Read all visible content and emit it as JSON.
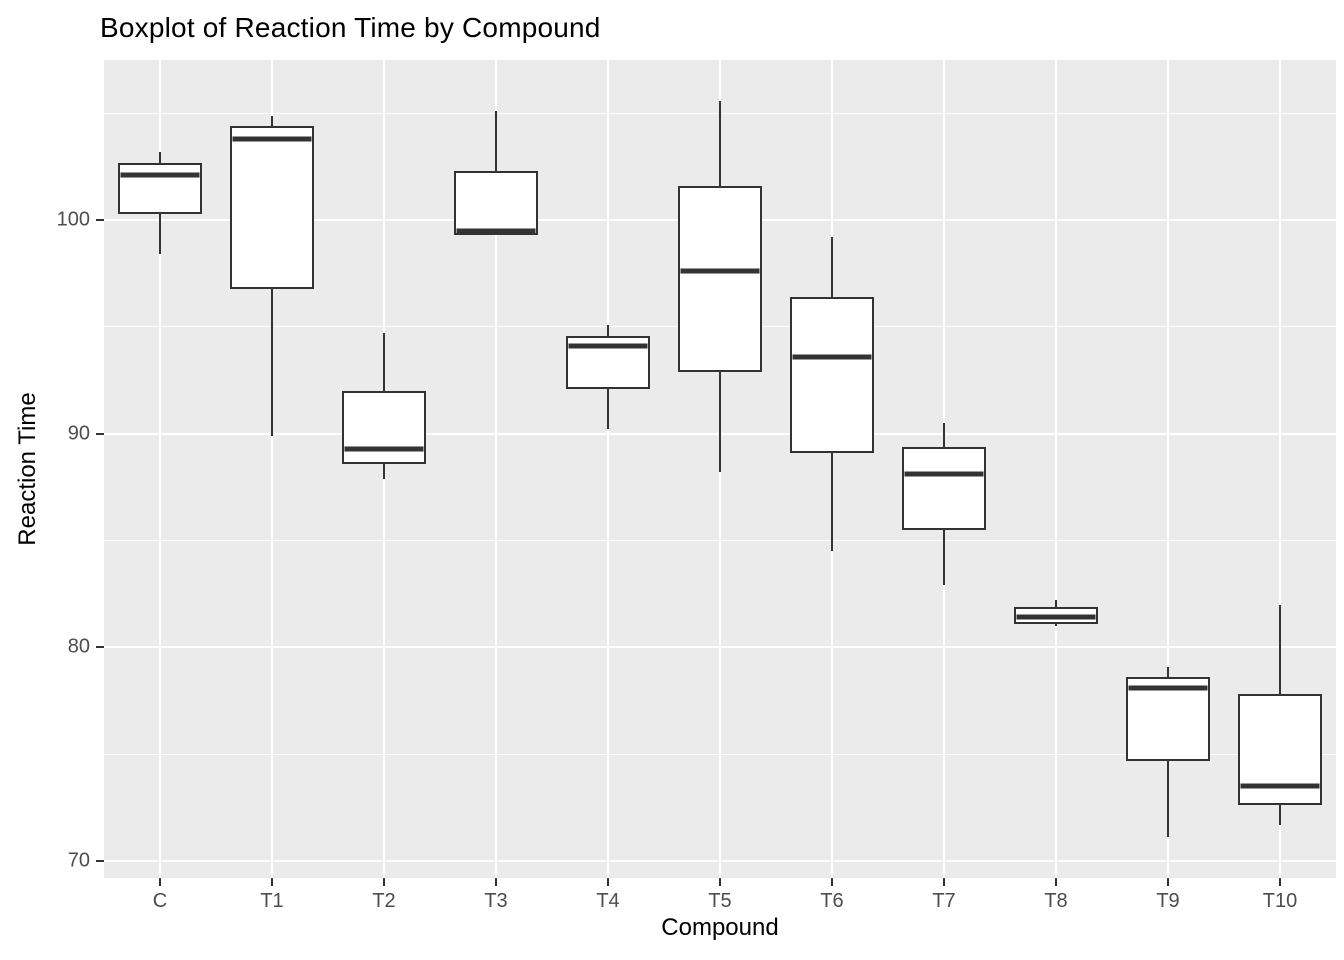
{
  "chart_data": {
    "type": "boxplot",
    "title": "Boxplot of Reaction Time by Compound",
    "xlabel": "Compound",
    "ylabel": "Reaction Time",
    "categories": [
      "C",
      "T1",
      "T2",
      "T3",
      "T4",
      "T5",
      "T6",
      "T7",
      "T8",
      "T9",
      "T10"
    ],
    "boxes": [
      {
        "category": "C",
        "whisker_low": 98.4,
        "q1": 100.3,
        "median": 102.1,
        "q3": 102.7,
        "whisker_high": 103.2
      },
      {
        "category": "T1",
        "whisker_low": 89.9,
        "q1": 96.8,
        "median": 103.8,
        "q3": 104.4,
        "whisker_high": 104.9
      },
      {
        "category": "T2",
        "whisker_low": 87.9,
        "q1": 88.6,
        "median": 89.3,
        "q3": 92.0,
        "whisker_high": 94.7
      },
      {
        "category": "T3",
        "whisker_low": 99.3,
        "q1": 99.3,
        "median": 99.5,
        "q3": 102.3,
        "whisker_high": 105.1
      },
      {
        "category": "T4",
        "whisker_low": 90.2,
        "q1": 92.1,
        "median": 94.1,
        "q3": 94.6,
        "whisker_high": 95.1
      },
      {
        "category": "T5",
        "whisker_low": 88.2,
        "q1": 92.9,
        "median": 97.6,
        "q3": 101.6,
        "whisker_high": 105.6
      },
      {
        "category": "T6",
        "whisker_low": 84.5,
        "q1": 89.1,
        "median": 93.6,
        "q3": 96.4,
        "whisker_high": 99.2
      },
      {
        "category": "T7",
        "whisker_low": 82.9,
        "q1": 85.5,
        "median": 88.1,
        "q3": 89.4,
        "whisker_high": 90.5
      },
      {
        "category": "T8",
        "whisker_low": 81.0,
        "q1": 81.1,
        "median": 81.4,
        "q3": 81.9,
        "whisker_high": 82.2
      },
      {
        "category": "T9",
        "whisker_low": 71.1,
        "q1": 74.7,
        "median": 78.1,
        "q3": 78.6,
        "whisker_high": 79.1
      },
      {
        "category": "T10",
        "whisker_low": 71.7,
        "q1": 72.6,
        "median": 73.5,
        "q3": 77.8,
        "whisker_high": 82.0
      }
    ],
    "y_ticks": [
      70,
      80,
      90,
      100
    ],
    "y_minor_ticks": [
      75,
      85,
      95,
      105
    ],
    "ylim": [
      69.2,
      107.5
    ],
    "legend": "none",
    "grid": "on",
    "colors": {
      "panel_background": "#EBEBEB",
      "gridline": "#FFFFFF",
      "box_border": "#333333",
      "box_fill": "#FFFFFF",
      "tick_label": "#4D4D4D",
      "axis_title": "#000000",
      "title": "#000000"
    }
  }
}
